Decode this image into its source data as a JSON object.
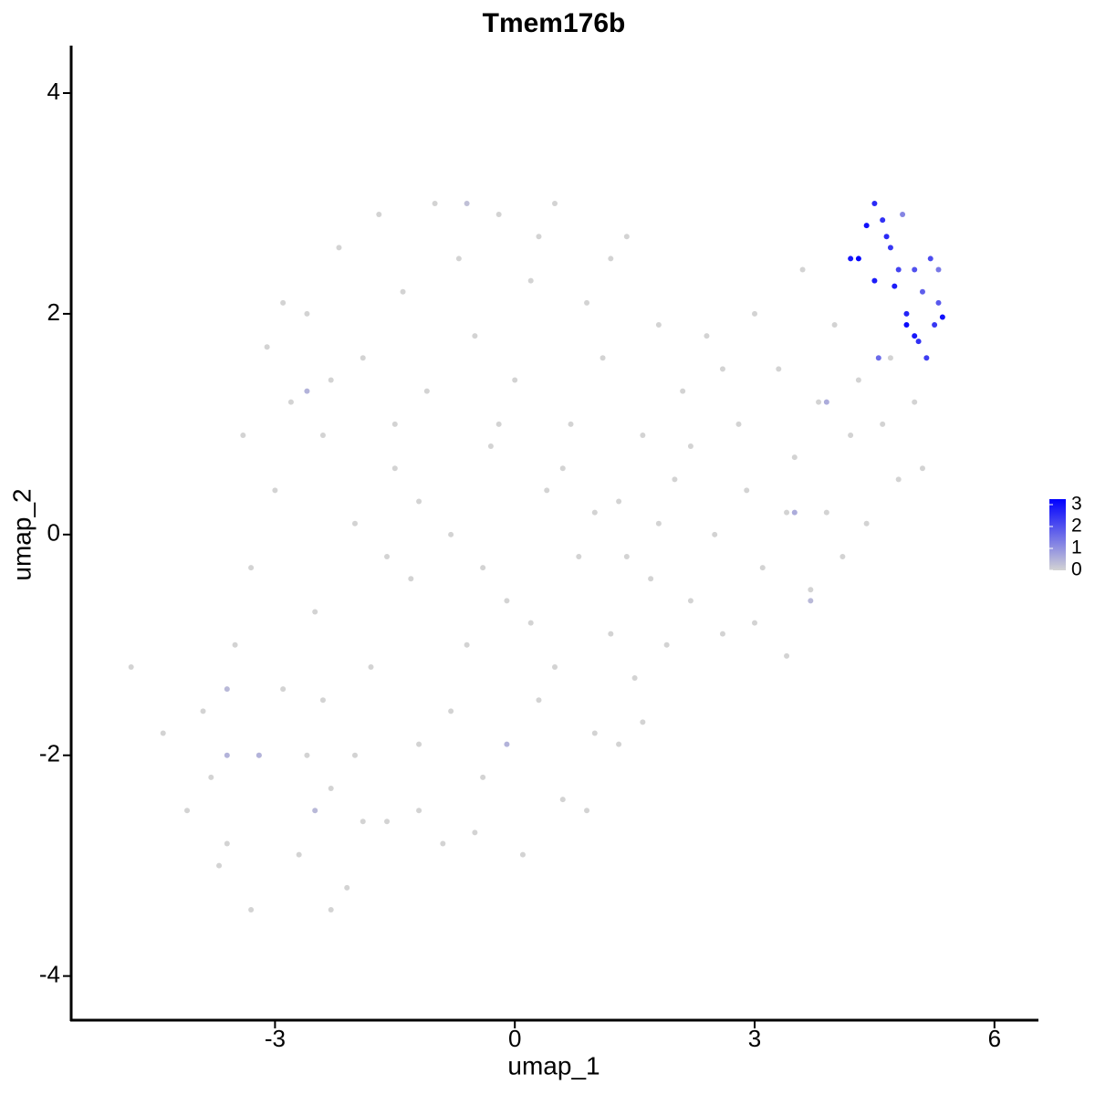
{
  "chart_data": {
    "type": "scatter",
    "title": "Tmem176b",
    "x_label": "umap_1",
    "y_label": "umap_2",
    "xlim": [
      -5.55,
      6.55
    ],
    "ylim": [
      -4.4,
      4.43
    ],
    "xticks": [
      -3,
      0,
      3,
      6
    ],
    "yticks": [
      -4,
      -2,
      0,
      2,
      4
    ],
    "colorscale": {
      "low": "#d3d3d3",
      "high": "#0000ff",
      "lim": [
        0,
        3.25
      ],
      "ticks": [
        0,
        1,
        2,
        3
      ]
    },
    "x": [
      -4.8,
      -4.4,
      -4.1,
      -3.9,
      -3.6,
      -3.5,
      -3.3,
      -3.2,
      -3.0,
      -2.9,
      -2.8,
      -2.7,
      -2.6,
      -2.5,
      -2.4,
      -2.3,
      -2.2,
      -2.1,
      -2.0,
      -1.9,
      -1.8,
      -1.7,
      -1.6,
      -1.5,
      -1.4,
      -1.3,
      -1.2,
      -1.1,
      -1.0,
      -0.9,
      -0.8,
      -0.7,
      -0.6,
      -0.5,
      -0.4,
      -0.3,
      -0.2,
      -0.1,
      0.0,
      0.1,
      0.2,
      0.3,
      0.4,
      0.5,
      0.6,
      0.7,
      0.8,
      0.9,
      1.0,
      1.1,
      1.2,
      1.3,
      1.4,
      1.5,
      1.6,
      1.7,
      1.8,
      1.9,
      2.0,
      2.1,
      2.2,
      2.4,
      2.5,
      2.6,
      2.8,
      2.9,
      3.0,
      3.1,
      3.3,
      3.4,
      3.5,
      3.6,
      3.7,
      3.8,
      3.9,
      4.0,
      4.1,
      4.2,
      4.3,
      4.4,
      4.6,
      4.8,
      5.0,
      5.1,
      4.7,
      -3.8,
      -3.4,
      -3.1,
      -2.9,
      -2.4,
      -2.0,
      -1.6,
      -1.2,
      -0.8,
      -0.4,
      0.2,
      0.6,
      1.0,
      1.4,
      1.8,
      2.2,
      2.6,
      3.0,
      3.4,
      -2.6,
      -1.9,
      -1.2,
      -0.5,
      0.9,
      1.3,
      1.6,
      0.5,
      -3.3,
      -2.3,
      -1.5,
      -0.2,
      0.3,
      1.2,
      -2.3,
      -3.7,
      -0.6,
      -3.6,
      -3.6,
      -3.2,
      -2.5,
      -2.6,
      -0.1,
      3.5,
      3.7,
      3.9,
      4.85,
      5.3,
      4.55,
      5.1,
      4.7,
      5.2,
      4.5,
      5.0,
      4.6,
      5.15,
      4.8,
      5.25,
      4.65,
      4.5,
      4.4,
      4.9,
      5.0,
      5.3,
      4.75,
      4.3,
      5.05,
      4.2,
      4.9,
      5.35
    ],
    "y": [
      -1.2,
      -1.8,
      -2.5,
      -1.6,
      -2.8,
      -1.0,
      -0.3,
      -2.0,
      0.4,
      -1.4,
      1.2,
      -2.9,
      2.0,
      -0.7,
      0.9,
      -2.3,
      2.6,
      -3.2,
      0.1,
      1.6,
      -1.2,
      2.9,
      -2.6,
      0.6,
      2.2,
      -0.4,
      -1.9,
      1.3,
      3.0,
      -2.8,
      0.0,
      2.5,
      -1.0,
      1.8,
      -2.2,
      0.8,
      2.9,
      -0.6,
      1.4,
      -2.9,
      2.3,
      -1.5,
      0.4,
      3.0,
      -2.4,
      1.0,
      -0.2,
      2.1,
      -1.8,
      1.6,
      -0.9,
      0.3,
      2.7,
      -1.3,
      0.9,
      -0.4,
      1.9,
      -1.0,
      0.5,
      1.3,
      -0.6,
      1.8,
      0.0,
      -0.9,
      1.0,
      0.4,
      2.0,
      -0.3,
      1.5,
      -1.1,
      0.7,
      2.4,
      -0.5,
      1.2,
      0.2,
      1.9,
      -0.2,
      0.9,
      1.4,
      0.1,
      1.0,
      0.5,
      1.2,
      0.6,
      1.6,
      -2.2,
      0.9,
      1.7,
      2.1,
      -1.5,
      -2.0,
      -0.2,
      0.3,
      -1.6,
      -0.3,
      -0.8,
      0.6,
      0.2,
      -0.2,
      0.1,
      0.8,
      1.5,
      -0.8,
      0.2,
      -2.0,
      -2.6,
      -2.5,
      -2.7,
      -2.5,
      -1.9,
      -1.7,
      -1.2,
      -3.4,
      -3.4,
      1.0,
      1.0,
      2.7,
      2.5,
      1.4,
      -3.0,
      3.0,
      -1.4,
      -2.0,
      -2.0,
      -2.5,
      1.3,
      -1.9,
      0.2,
      -0.6,
      1.2,
      2.9,
      2.4,
      1.6,
      2.2,
      2.6,
      2.5,
      3.0,
      2.4,
      2.85,
      1.6,
      2.4,
      1.9,
      2.7,
      2.3,
      2.8,
      2.0,
      1.8,
      2.1,
      2.25,
      2.5,
      1.75,
      2.5,
      1.9,
      1.97
    ],
    "values": [
      0,
      0,
      0,
      0,
      0,
      0,
      0,
      0,
      0,
      0,
      0,
      0,
      0,
      0,
      0,
      0,
      0,
      0,
      0,
      0,
      0,
      0,
      0,
      0,
      0,
      0,
      0,
      0,
      0,
      0,
      0,
      0,
      0,
      0,
      0,
      0,
      0,
      0,
      0,
      0,
      0,
      0,
      0,
      0,
      0,
      0,
      0,
      0,
      0,
      0,
      0,
      0,
      0,
      0,
      0,
      0,
      0,
      0,
      0,
      0,
      0,
      0,
      0,
      0,
      0,
      0,
      0,
      0,
      0,
      0,
      0,
      0,
      0,
      0,
      0,
      0,
      0,
      0,
      0,
      0,
      0,
      0,
      0,
      0,
      0,
      0,
      0,
      0,
      0,
      0,
      0,
      0,
      0,
      0,
      0,
      0,
      0,
      0,
      0,
      0,
      0,
      0,
      0,
      0,
      0,
      0,
      0,
      0,
      0,
      0,
      0,
      0,
      0,
      0,
      0,
      0,
      0,
      0,
      0,
      0,
      0.3,
      0.4,
      0.5,
      0.5,
      0.4,
      0.5,
      0.5,
      0.6,
      0.4,
      0.6,
      1.2,
      1.4,
      1.6,
      1.8,
      2.4,
      2.1,
      2.6,
      2.0,
      2.5,
      2.3,
      2.2,
      2.4,
      2.6,
      2.8,
      3.0,
      2.7,
      2.9,
      1.9,
      2.8,
      3.2,
      2.5,
      2.9,
      3.1,
      3.0
    ]
  }
}
